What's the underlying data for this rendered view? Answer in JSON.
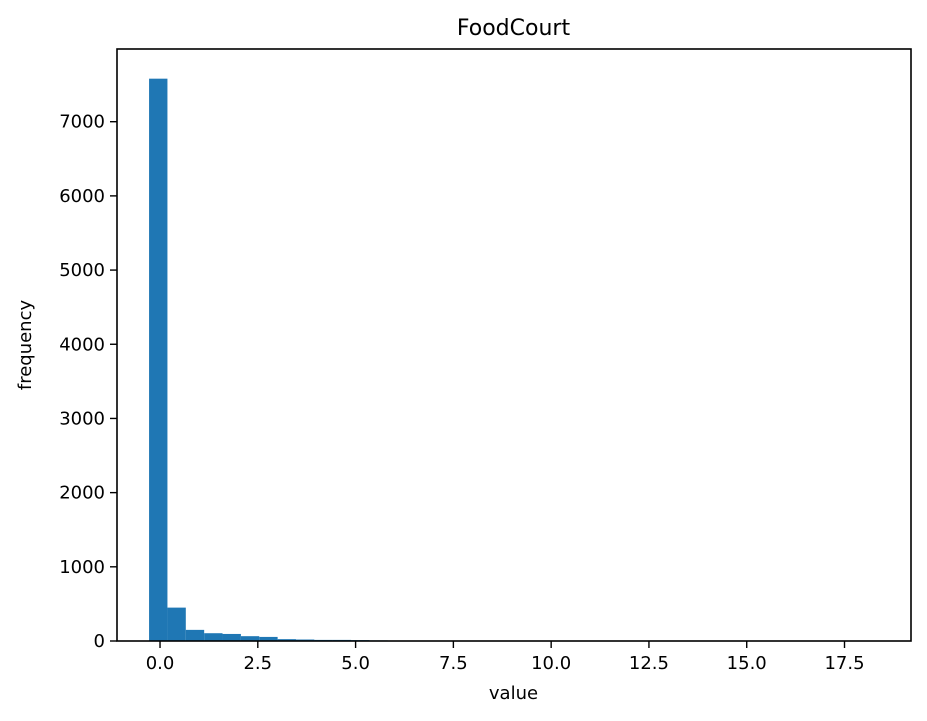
{
  "colors": {
    "bar": "#1f77b4",
    "axes": "#000000",
    "background": "#ffffff"
  },
  "chart_data": {
    "type": "bar",
    "title": "FoodCourt",
    "xlabel": "value",
    "ylabel": "frequency",
    "xlim": [
      -1.1,
      19.2
    ],
    "ylim": [
      0,
      7980
    ],
    "grid": false,
    "x_ticks": [
      0.0,
      2.5,
      5.0,
      7.5,
      10.0,
      12.5,
      15.0,
      17.5
    ],
    "x_tick_labels": [
      "0.0",
      "2.5",
      "5.0",
      "7.5",
      "10.0",
      "12.5",
      "15.0",
      "17.5"
    ],
    "y_ticks": [
      0,
      1000,
      2000,
      3000,
      4000,
      5000,
      6000,
      7000
    ],
    "y_tick_labels": [
      "0",
      "1000",
      "2000",
      "3000",
      "4000",
      "5000",
      "6000",
      "7000"
    ],
    "bin_start": -0.28,
    "bin_width": 0.4695,
    "values": [
      7580,
      450,
      150,
      105,
      95,
      65,
      55,
      25,
      20,
      15,
      15,
      12,
      8,
      6,
      5,
      4,
      3,
      3,
      2,
      2,
      2,
      1,
      1,
      1,
      1,
      1,
      1,
      1,
      1,
      1,
      1,
      1,
      1,
      1,
      1,
      1,
      1,
      1,
      1,
      1
    ]
  }
}
